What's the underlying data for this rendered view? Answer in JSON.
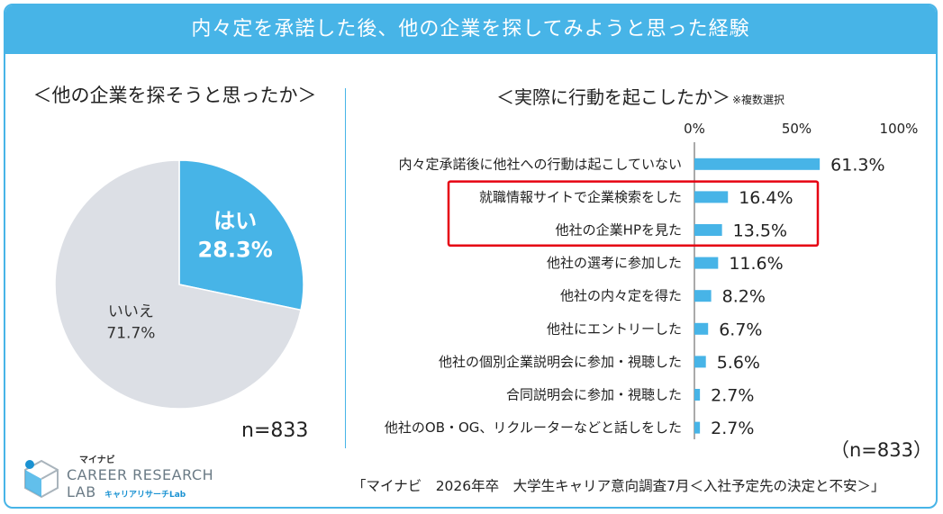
{
  "banner_title": "内々定を承諾した後、他の企業を探してみようと思った経験",
  "source": "「マイナビ　2026年卒　大学生キャリア意向調査7月＜入社予定先の決定と不安＞」",
  "logo": {
    "top": "マイナビ",
    "line1": "CAREER RESEARCH",
    "line2": "LAB",
    "sub": "キャリアリサーチLab"
  },
  "colors": {
    "accent": "#47b4e7",
    "grey": "#dcdfe5",
    "highlight": "#e60012"
  },
  "chart_data": [
    {
      "type": "pie",
      "title": "＜他の企業を探そうと思ったか＞",
      "n_label": "n=833",
      "slices": [
        {
          "label": "はい",
          "value": 28.3,
          "value_label": "28.3%",
          "color": "#47b4e7"
        },
        {
          "label": "いいえ",
          "value": 71.7,
          "value_label": "71.7%",
          "color": "#dcdfe5"
        }
      ]
    },
    {
      "type": "bar",
      "orientation": "horizontal",
      "title": "＜実際に行動を起こしたか＞",
      "title_note": "※複数選択",
      "n_label": "（n=833）",
      "xlim": [
        0,
        100
      ],
      "ticks": [
        0,
        50,
        100
      ],
      "tick_labels": [
        "0%",
        "50%",
        "100%"
      ],
      "categories": [
        "内々定承諾後に他社への行動は起こしていない",
        "就職情報サイトで企業検索をした",
        "他社の企業HPを見た",
        "他社の選考に参加した",
        "他社の内々定を得た",
        "他社にエントリーした",
        "他社の個別企業説明会に参加・視聴した",
        "合同説明会に参加・視聴した",
        "他社のOB・OG、リクルーターなどと話しをした"
      ],
      "values": [
        61.3,
        16.4,
        13.5,
        11.6,
        8.2,
        6.7,
        5.6,
        2.7,
        2.7
      ],
      "value_labels": [
        "61.3%",
        "16.4%",
        "13.5%",
        "11.6%",
        "8.2%",
        "6.7%",
        "5.6%",
        "2.7%",
        "2.7%"
      ],
      "highlighted_categories": [
        "就職情報サイトで企業検索をした",
        "他社の企業HPを見た"
      ]
    }
  ]
}
